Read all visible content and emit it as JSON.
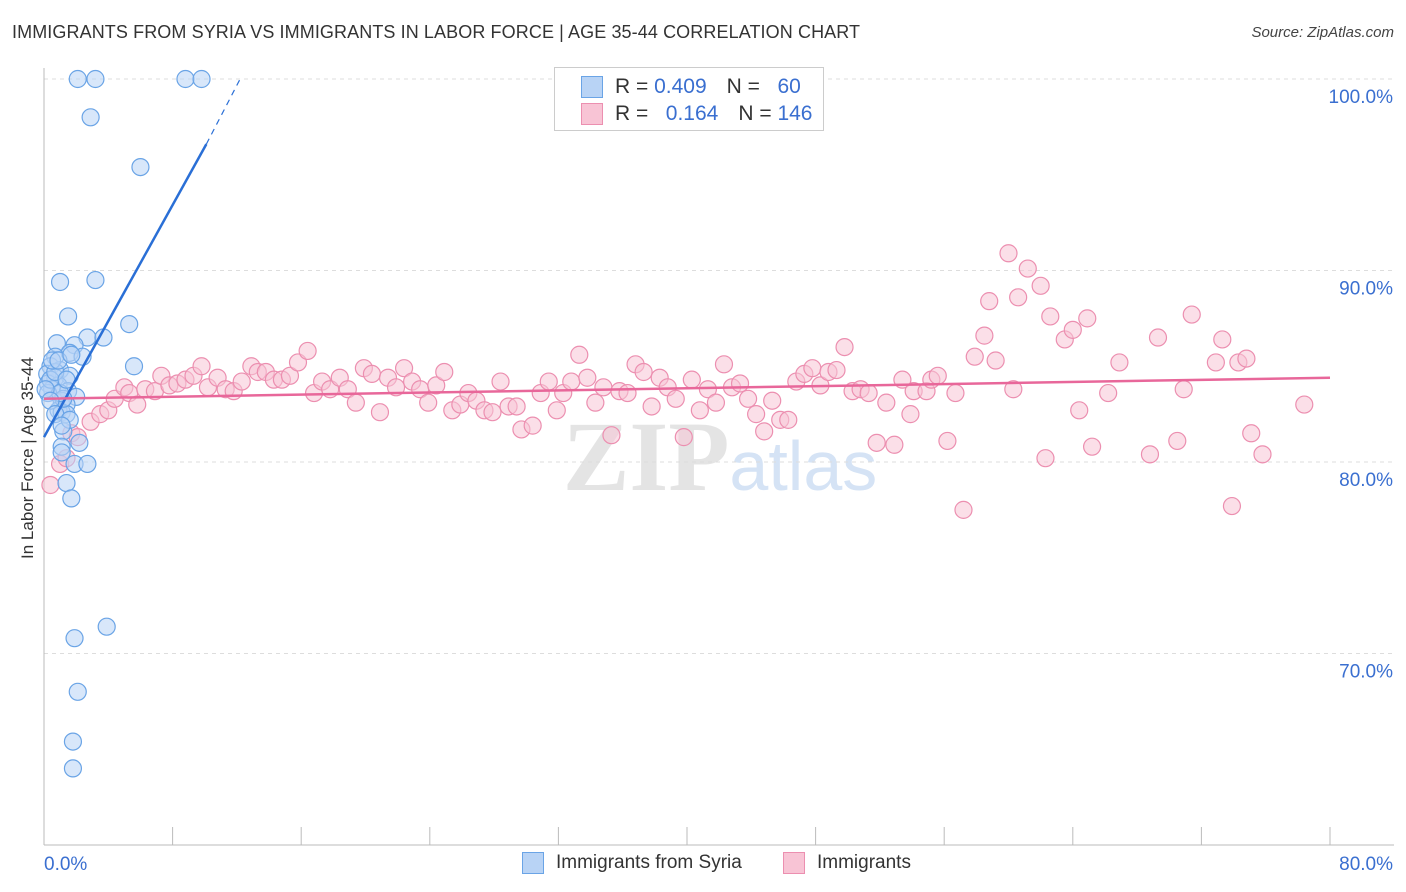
{
  "title": "IMMIGRANTS FROM SYRIA VS IMMIGRANTS IN LABOR FORCE | AGE 35-44 CORRELATION CHART",
  "source": "Source: ZipAtlas.com",
  "watermark": "ZIPatlas",
  "legend": {
    "rows": [
      {
        "r_label": "R =",
        "r": "0.409",
        "n_label": "N =",
        "n": "60"
      },
      {
        "r_label": "R =",
        "r": "0.164",
        "n_label": "N =",
        "n": "146"
      }
    ]
  },
  "colors": {
    "blue": "#6aa4e6",
    "blue_fill": "#b8d3f5",
    "blue_line": "#2a6fd6",
    "pink": "#ec8fb0",
    "pink_fill": "#f8c4d5",
    "pink_line": "#e8679a",
    "tick_text": "#3a6fd0"
  },
  "chart_data": {
    "type": "scatter",
    "title": "IMMIGRANTS FROM SYRIA VS IMMIGRANTS IN LABOR FORCE | AGE 35-44 CORRELATION CHART",
    "xlabel": "",
    "ylabel": "In Labor Force | Age 35-44",
    "xlim": [
      0,
      80
    ],
    "ylim": [
      60,
      100
    ],
    "x_tick_labels": [
      "0.0%",
      "80.0%"
    ],
    "y_ticks": [
      100,
      90,
      80,
      70
    ],
    "y_tick_labels": [
      "100.0%",
      "90.0%",
      "80.0%",
      "70.0%"
    ],
    "grid": true,
    "legend_position": "bottom",
    "series": [
      {
        "name": "Immigrants from Syria",
        "r": 0.409,
        "n": 60,
        "trend": {
          "x": [
            0,
            10.1,
            12.2
          ],
          "y": [
            81.3,
            96.6,
            100
          ]
        },
        "points": [
          [
            2.1,
            100
          ],
          [
            3.2,
            100
          ],
          [
            8.8,
            100
          ],
          [
            9.8,
            100
          ],
          [
            2.9,
            98.0
          ],
          [
            6.0,
            95.4
          ],
          [
            1.0,
            89.4
          ],
          [
            3.2,
            89.5
          ],
          [
            1.5,
            87.6
          ],
          [
            5.3,
            87.2
          ],
          [
            2.7,
            86.5
          ],
          [
            3.7,
            86.5
          ],
          [
            0.8,
            86.2
          ],
          [
            1.9,
            86.1
          ],
          [
            1.6,
            85.7
          ],
          [
            2.4,
            85.5
          ],
          [
            0.7,
            85.5
          ],
          [
            5.6,
            85.0
          ],
          [
            0.4,
            85.0
          ],
          [
            1.0,
            84.8
          ],
          [
            0.2,
            84.6
          ],
          [
            0.7,
            84.4
          ],
          [
            1.6,
            84.5
          ],
          [
            0.25,
            84.1
          ],
          [
            0.9,
            84.0
          ],
          [
            0.5,
            83.8
          ],
          [
            1.5,
            83.7
          ],
          [
            2.0,
            83.4
          ],
          [
            0.25,
            83.6
          ],
          [
            1.1,
            83.2
          ],
          [
            1.4,
            83.0
          ],
          [
            0.9,
            82.7
          ],
          [
            1.1,
            82.6
          ],
          [
            1.4,
            82.5
          ],
          [
            1.2,
            81.6
          ],
          [
            2.2,
            81.0
          ],
          [
            1.1,
            80.8
          ],
          [
            1.1,
            80.5
          ],
          [
            1.9,
            79.9
          ],
          [
            2.7,
            79.9
          ],
          [
            1.4,
            78.9
          ],
          [
            1.7,
            78.1
          ],
          [
            1.9,
            70.8
          ],
          [
            3.9,
            71.4
          ],
          [
            2.1,
            68.0
          ],
          [
            1.8,
            65.4
          ],
          [
            1.8,
            64.0
          ],
          [
            0.4,
            84.3
          ],
          [
            0.7,
            84.7
          ],
          [
            1.2,
            83.3
          ],
          [
            0.5,
            85.3
          ],
          [
            1.0,
            83.6
          ],
          [
            0.1,
            83.8
          ],
          [
            0.4,
            83.2
          ],
          [
            0.7,
            82.5
          ],
          [
            1.6,
            82.2
          ],
          [
            1.1,
            81.9
          ],
          [
            0.9,
            85.3
          ],
          [
            1.4,
            84.3
          ],
          [
            1.7,
            85.6
          ]
        ]
      },
      {
        "name": "Immigrants",
        "r": 0.164,
        "n": 146,
        "trend": {
          "x": [
            0,
            80
          ],
          "y": [
            83.3,
            84.4
          ]
        },
        "points": [
          [
            0.4,
            78.8
          ],
          [
            1.0,
            79.9
          ],
          [
            1.4,
            80.2
          ],
          [
            1.7,
            81.5
          ],
          [
            2.1,
            81.3
          ],
          [
            2.9,
            82.1
          ],
          [
            3.5,
            82.5
          ],
          [
            4.0,
            82.7
          ],
          [
            4.4,
            83.3
          ],
          [
            5.0,
            83.9
          ],
          [
            5.3,
            83.6
          ],
          [
            5.8,
            83.0
          ],
          [
            6.3,
            83.8
          ],
          [
            6.9,
            83.7
          ],
          [
            7.3,
            84.5
          ],
          [
            7.8,
            84.0
          ],
          [
            8.3,
            84.1
          ],
          [
            8.8,
            84.3
          ],
          [
            9.3,
            84.5
          ],
          [
            9.8,
            85.0
          ],
          [
            10.2,
            83.9
          ],
          [
            10.8,
            84.4
          ],
          [
            11.3,
            83.8
          ],
          [
            11.8,
            83.7
          ],
          [
            12.3,
            84.2
          ],
          [
            12.9,
            85.0
          ],
          [
            13.3,
            84.7
          ],
          [
            13.8,
            84.7
          ],
          [
            14.3,
            84.3
          ],
          [
            14.8,
            84.3
          ],
          [
            15.3,
            84.5
          ],
          [
            15.8,
            85.2
          ],
          [
            16.4,
            85.8
          ],
          [
            16.8,
            83.6
          ],
          [
            17.3,
            84.2
          ],
          [
            17.8,
            83.8
          ],
          [
            18.4,
            84.4
          ],
          [
            18.9,
            83.8
          ],
          [
            19.4,
            83.1
          ],
          [
            19.9,
            84.9
          ],
          [
            20.4,
            84.6
          ],
          [
            20.9,
            82.6
          ],
          [
            21.4,
            84.4
          ],
          [
            21.9,
            83.9
          ],
          [
            22.4,
            84.9
          ],
          [
            22.9,
            84.2
          ],
          [
            23.4,
            83.8
          ],
          [
            23.9,
            83.1
          ],
          [
            24.4,
            84.0
          ],
          [
            24.9,
            84.7
          ],
          [
            25.4,
            82.7
          ],
          [
            25.9,
            83.0
          ],
          [
            26.4,
            83.6
          ],
          [
            26.9,
            83.2
          ],
          [
            27.4,
            82.7
          ],
          [
            27.9,
            82.6
          ],
          [
            28.4,
            84.2
          ],
          [
            28.9,
            82.9
          ],
          [
            29.4,
            82.9
          ],
          [
            29.7,
            81.7
          ],
          [
            30.4,
            81.9
          ],
          [
            30.9,
            83.6
          ],
          [
            31.4,
            84.2
          ],
          [
            31.9,
            82.7
          ],
          [
            32.3,
            83.6
          ],
          [
            32.8,
            84.2
          ],
          [
            33.3,
            85.6
          ],
          [
            33.8,
            84.4
          ],
          [
            34.3,
            83.1
          ],
          [
            34.8,
            83.9
          ],
          [
            35.3,
            81.4
          ],
          [
            35.8,
            83.7
          ],
          [
            36.3,
            83.6
          ],
          [
            36.8,
            85.1
          ],
          [
            37.3,
            84.7
          ],
          [
            37.8,
            82.9
          ],
          [
            38.3,
            84.4
          ],
          [
            38.8,
            83.9
          ],
          [
            39.3,
            83.3
          ],
          [
            39.8,
            81.3
          ],
          [
            40.3,
            84.3
          ],
          [
            40.8,
            82.7
          ],
          [
            41.3,
            83.8
          ],
          [
            41.8,
            83.1
          ],
          [
            42.3,
            85.1
          ],
          [
            42.8,
            83.9
          ],
          [
            43.3,
            84.1
          ],
          [
            43.8,
            83.3
          ],
          [
            44.3,
            82.5
          ],
          [
            44.8,
            81.6
          ],
          [
            45.3,
            83.2
          ],
          [
            45.8,
            82.2
          ],
          [
            46.3,
            82.2
          ],
          [
            46.8,
            84.2
          ],
          [
            47.3,
            84.6
          ],
          [
            47.8,
            84.9
          ],
          [
            48.3,
            84.0
          ],
          [
            48.8,
            84.7
          ],
          [
            49.3,
            84.8
          ],
          [
            49.8,
            86.0
          ],
          [
            50.3,
            83.7
          ],
          [
            50.8,
            83.8
          ],
          [
            51.3,
            83.6
          ],
          [
            51.8,
            81.0
          ],
          [
            52.4,
            83.1
          ],
          [
            52.9,
            80.9
          ],
          [
            53.4,
            84.3
          ],
          [
            53.9,
            82.5
          ],
          [
            54.1,
            83.7
          ],
          [
            54.9,
            83.7
          ],
          [
            55.2,
            84.3
          ],
          [
            55.6,
            84.5
          ],
          [
            56.2,
            81.1
          ],
          [
            56.7,
            83.6
          ],
          [
            57.2,
            77.5
          ],
          [
            57.9,
            85.5
          ],
          [
            58.5,
            86.6
          ],
          [
            58.8,
            88.4
          ],
          [
            59.2,
            85.3
          ],
          [
            60.0,
            90.9
          ],
          [
            60.3,
            83.8
          ],
          [
            60.6,
            88.6
          ],
          [
            61.2,
            90.1
          ],
          [
            62.0,
            89.2
          ],
          [
            62.3,
            80.2
          ],
          [
            62.6,
            87.6
          ],
          [
            63.5,
            86.4
          ],
          [
            64.0,
            86.9
          ],
          [
            64.4,
            82.7
          ],
          [
            64.9,
            87.5
          ],
          [
            65.2,
            80.8
          ],
          [
            66.2,
            83.6
          ],
          [
            66.9,
            85.2
          ],
          [
            68.8,
            80.4
          ],
          [
            69.3,
            86.5
          ],
          [
            70.5,
            81.1
          ],
          [
            70.9,
            83.8
          ],
          [
            71.4,
            87.7
          ],
          [
            72.9,
            85.2
          ],
          [
            73.3,
            86.4
          ],
          [
            73.9,
            77.7
          ],
          [
            74.3,
            85.2
          ],
          [
            74.8,
            85.4
          ],
          [
            75.1,
            81.5
          ],
          [
            75.8,
            80.4
          ],
          [
            78.4,
            83.0
          ]
        ]
      }
    ]
  }
}
